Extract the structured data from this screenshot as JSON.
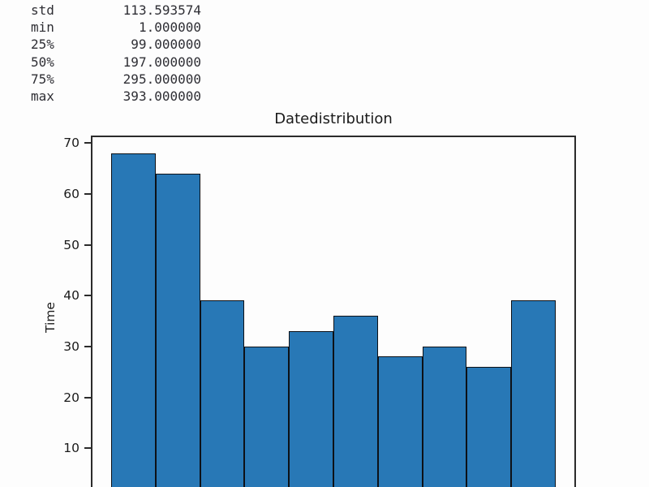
{
  "stats": {
    "rows": [
      {
        "label": "std",
        "value": "113.593574"
      },
      {
        "label": "min",
        "value": "1.000000"
      },
      {
        "label": "25%",
        "value": "99.000000"
      },
      {
        "label": "50%",
        "value": "197.000000"
      },
      {
        "label": "75%",
        "value": "295.000000"
      },
      {
        "label": "max",
        "value": "393.000000"
      }
    ]
  },
  "chart_data": {
    "type": "bar",
    "subtype": "histogram",
    "title": "Datedistribution",
    "xlabel": "",
    "ylabel": "Time",
    "values": [
      68,
      64,
      39,
      30,
      33,
      36,
      28,
      30,
      26,
      39
    ],
    "bin_count": 10,
    "yticks": [
      10,
      20,
      30,
      40,
      50,
      60,
      70
    ],
    "ylim": [
      0,
      71.5
    ],
    "x_axis_visible": false,
    "grid": false,
    "legend": false,
    "bar_color": "#2878b6",
    "bar_edge_color": "#0d1117",
    "axis_color": "#2b2b2b"
  }
}
